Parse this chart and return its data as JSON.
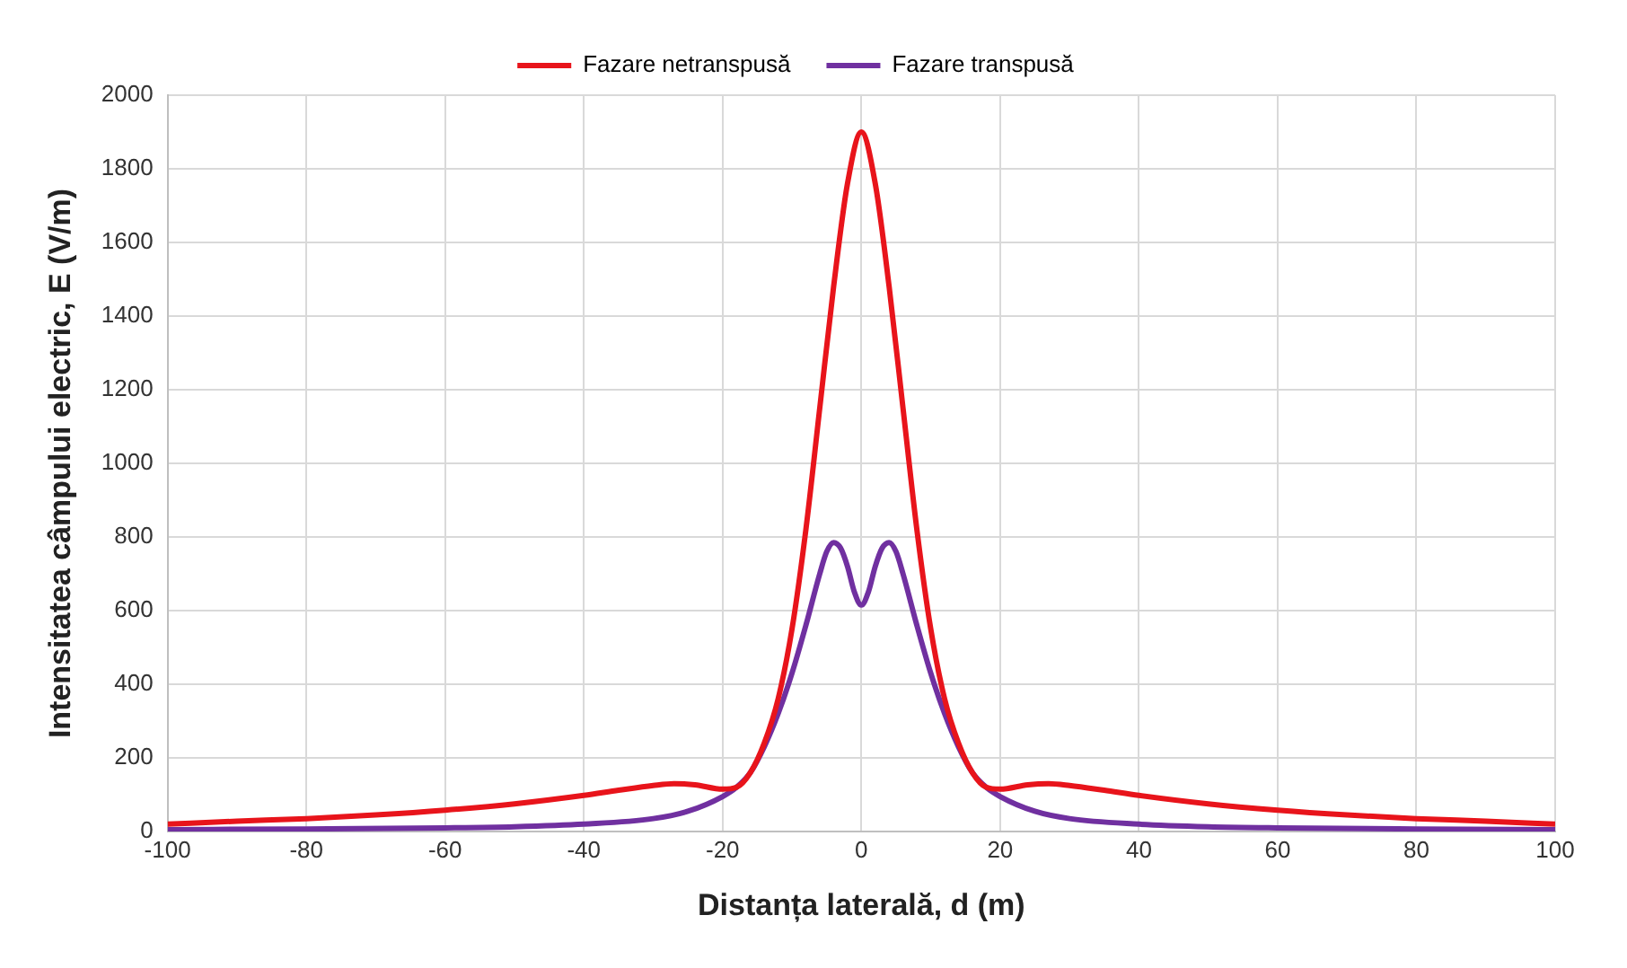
{
  "chart_data": {
    "type": "line",
    "xlabel": "Distanța laterală, d (m)",
    "ylabel": "Intensitatea câmpului electric, E (V/m)",
    "xlim": [
      -100,
      100
    ],
    "xticks": [
      -100,
      -80,
      -60,
      -40,
      -20,
      0,
      20,
      40,
      60,
      80,
      100
    ],
    "ylim": [
      0,
      2000
    ],
    "yticks": [
      0,
      200,
      400,
      600,
      800,
      1000,
      1200,
      1400,
      1600,
      1800,
      2000
    ],
    "grid": true,
    "legend": "top",
    "marker": "none",
    "line_style": "solid",
    "series": [
      {
        "name": "Fazare netranspusă",
        "color": "#e8141b",
        "x": [
          -100,
          -90,
          -80,
          -70,
          -60,
          -50,
          -40,
          -35,
          -30,
          -27,
          -24,
          -20,
          -18,
          -16,
          -14,
          -12,
          -10,
          -8,
          -6,
          -4,
          -2,
          0,
          2,
          4,
          6,
          8,
          10,
          12,
          14,
          16,
          18,
          20,
          24,
          27,
          30,
          35,
          40,
          50,
          60,
          70,
          80,
          90,
          100
        ],
        "values": [
          20,
          28,
          35,
          45,
          58,
          75,
          98,
          112,
          125,
          130,
          127,
          115,
          120,
          160,
          240,
          360,
          550,
          820,
          1150,
          1480,
          1760,
          1900,
          1760,
          1480,
          1150,
          820,
          550,
          360,
          240,
          160,
          120,
          115,
          127,
          130,
          125,
          112,
          98,
          75,
          58,
          45,
          35,
          28,
          20
        ]
      },
      {
        "name": "Fazare transpusă",
        "color": "#7030a0",
        "x": [
          -100,
          -80,
          -60,
          -50,
          -40,
          -30,
          -25,
          -20,
          -18,
          -16,
          -14,
          -12,
          -10,
          -8,
          -6,
          -5,
          -4,
          -3,
          -2,
          -1,
          0,
          1,
          2,
          3,
          4,
          5,
          6,
          8,
          10,
          12,
          14,
          16,
          18,
          20,
          25,
          30,
          40,
          50,
          60,
          80,
          100
        ],
        "values": [
          5,
          7,
          10,
          13,
          20,
          35,
          55,
          95,
          120,
          160,
          230,
          320,
          430,
          560,
          700,
          760,
          785,
          770,
          720,
          650,
          615,
          650,
          720,
          770,
          785,
          760,
          700,
          560,
          430,
          320,
          230,
          160,
          120,
          95,
          55,
          35,
          20,
          13,
          10,
          7,
          5
        ]
      }
    ]
  }
}
